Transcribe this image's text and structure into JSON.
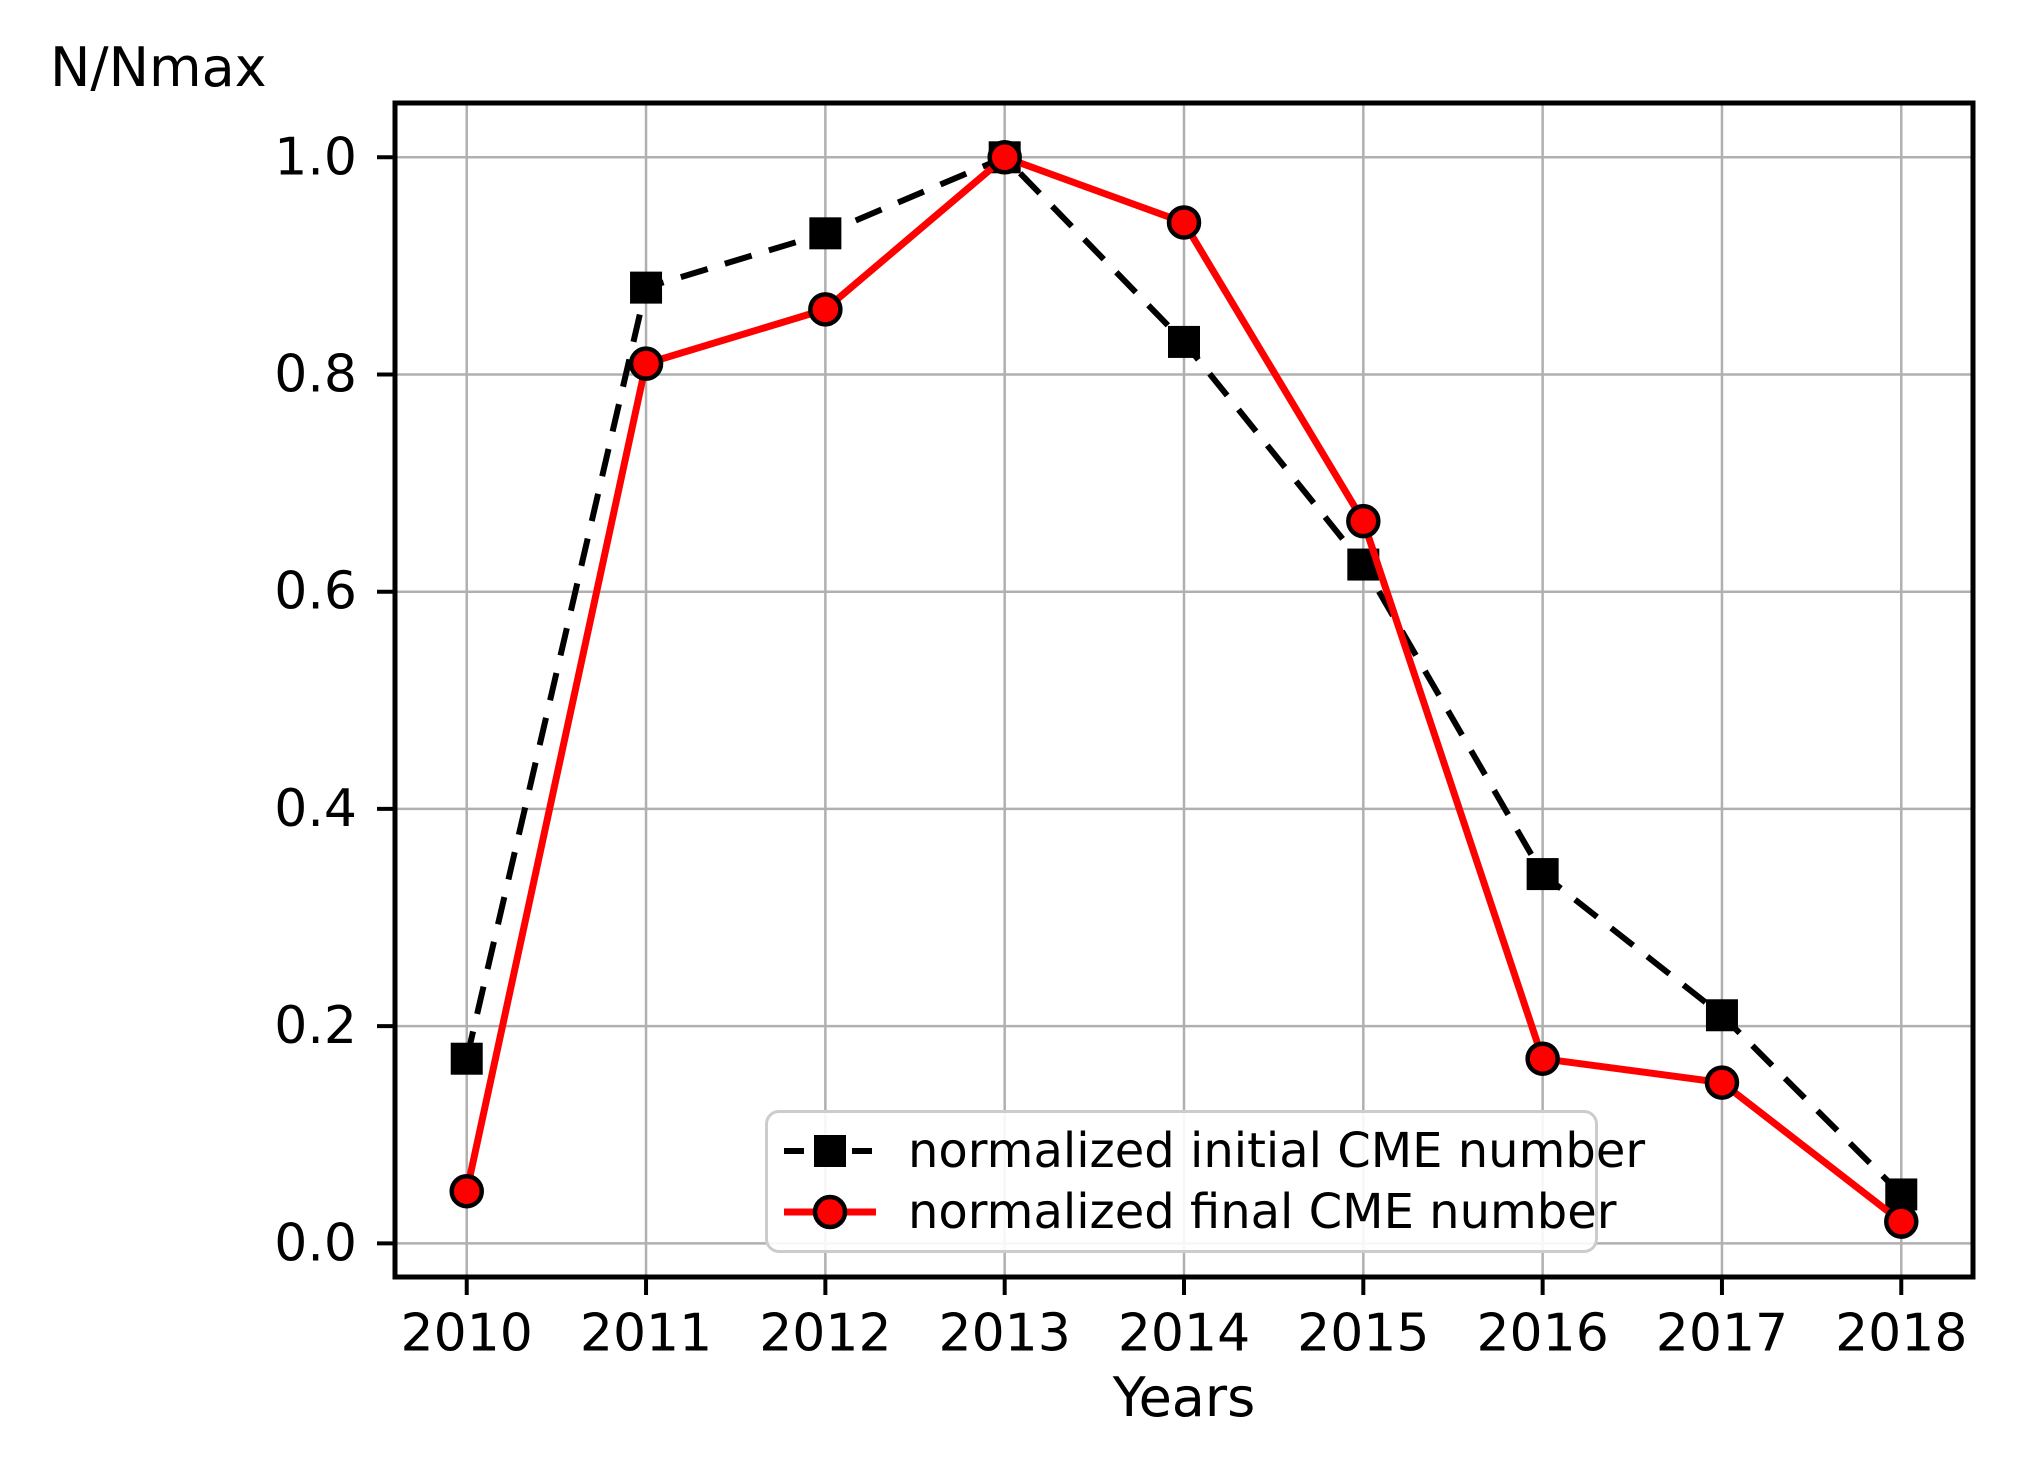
{
  "chart_data": {
    "type": "line",
    "title": "",
    "ylabel": "N/Nmax",
    "xlabel": "Years",
    "x": [
      2010,
      2011,
      2012,
      2013,
      2014,
      2015,
      2016,
      2017,
      2018
    ],
    "xtick_labels": [
      "2010",
      "2011",
      "2012",
      "2013",
      "2014",
      "2015",
      "2016",
      "2017",
      "2018"
    ],
    "ytick_values": [
      0.0,
      0.2,
      0.4,
      0.6,
      0.8,
      1.0
    ],
    "ytick_labels": [
      "0.0",
      "0.2",
      "0.4",
      "0.6",
      "0.8",
      "1.0"
    ],
    "xlim": [
      2009.6,
      2018.4
    ],
    "ylim": [
      -0.031,
      1.05
    ],
    "grid": true,
    "grid_color": "#b0b0b0",
    "axis_color": "#000000",
    "legend_position": "lower-center",
    "legend_border_color": "#cccccc",
    "series": [
      {
        "name": "normalized initial CME number",
        "color": "#000000",
        "line_style": "dashed",
        "marker": "square",
        "values": [
          0.17,
          0.88,
          0.93,
          1.0,
          0.83,
          0.625,
          0.34,
          0.21,
          0.045
        ]
      },
      {
        "name": "normalized final CME number",
        "color": "#ff0000",
        "marker_edge_color": "#000000",
        "line_style": "solid",
        "marker": "circle",
        "values": [
          0.048,
          0.81,
          0.86,
          1.0,
          0.94,
          0.665,
          0.17,
          0.148,
          0.02
        ]
      }
    ]
  }
}
